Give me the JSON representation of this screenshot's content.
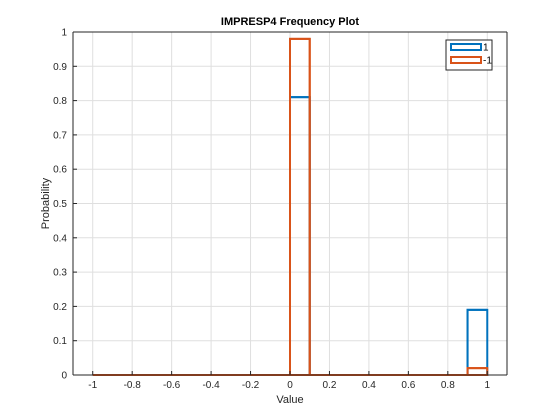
{
  "chart_data": {
    "type": "histogram",
    "title": "IMPRESP4 Frequency Plot",
    "xlabel": "Value",
    "ylabel": "Probability",
    "xlim": [
      -1.1,
      1.1
    ],
    "ylim": [
      0,
      1
    ],
    "grid": true,
    "legend_position": "top-right",
    "x_ticks": [
      "-1",
      "-0.8",
      "-0.6",
      "-0.4",
      "-0.2",
      "0",
      "0.2",
      "0.4",
      "0.6",
      "0.8",
      "1"
    ],
    "y_ticks": [
      "0",
      "0.1",
      "0.2",
      "0.3",
      "0.4",
      "0.5",
      "0.6",
      "0.7",
      "0.8",
      "0.9",
      "1"
    ],
    "bin_edges": [
      -1,
      -0.9,
      -0.8,
      -0.7,
      -0.6,
      -0.5,
      -0.4,
      -0.3,
      -0.2,
      -0.1,
      0,
      0.1,
      0.2,
      0.3,
      0.4,
      0.5,
      0.6,
      0.7,
      0.8,
      0.9,
      1
    ],
    "series": [
      {
        "name": "1",
        "color": "#0072BD",
        "values": [
          0,
          0,
          0,
          0,
          0,
          0,
          0,
          0,
          0,
          0,
          0.81,
          0,
          0,
          0,
          0,
          0,
          0,
          0,
          0,
          0.19
        ]
      },
      {
        "name": "-1",
        "color": "#D95319",
        "values": [
          0,
          0,
          0,
          0,
          0,
          0,
          0,
          0,
          0,
          0,
          0.98,
          0,
          0,
          0,
          0,
          0,
          0,
          0,
          0,
          0.02
        ]
      }
    ]
  }
}
